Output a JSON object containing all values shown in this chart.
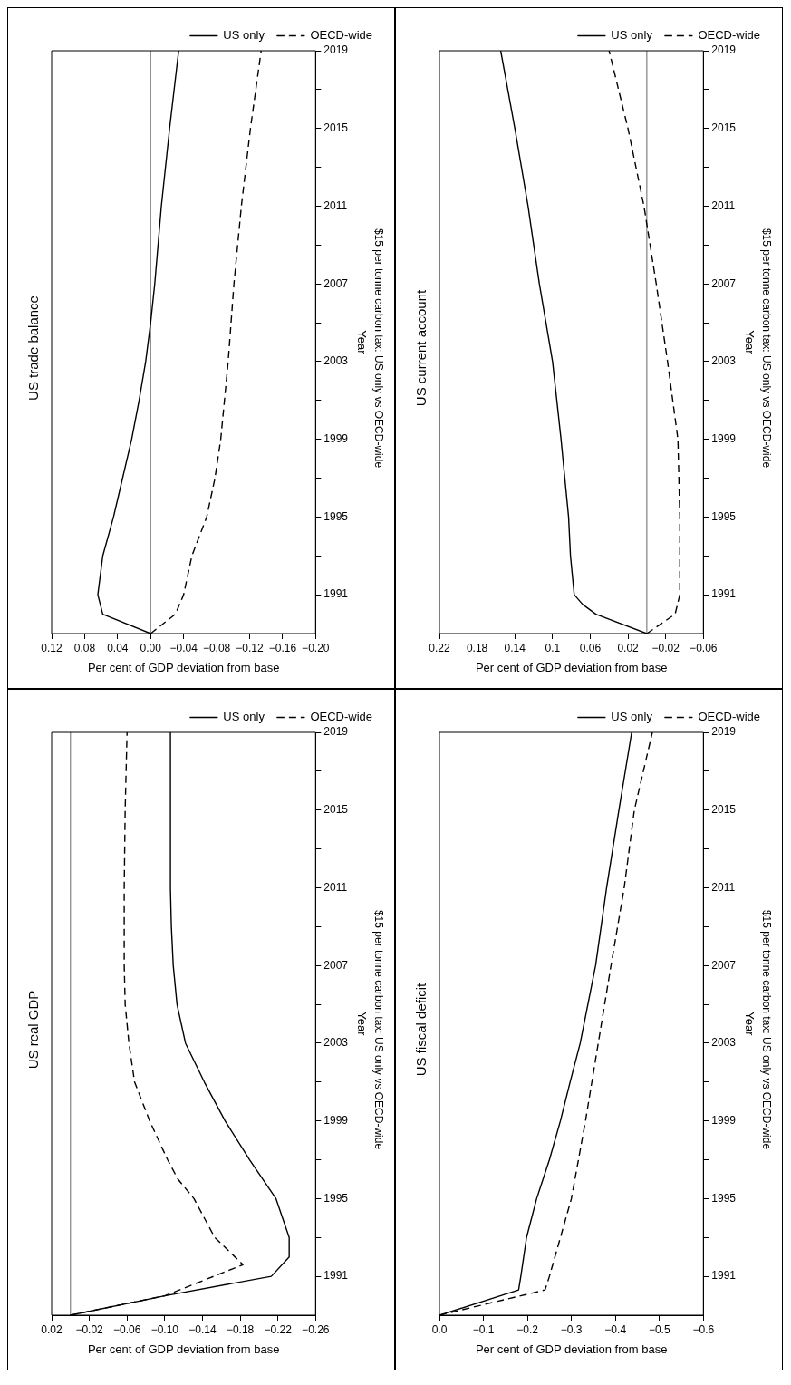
{
  "chart_data": [
    {
      "type": "line",
      "orientation": "horizontal",
      "title": "US trade balance",
      "ylabel": "Year",
      "xlabel": "Per cent of GDP deviation from base",
      "annotations": [
        "$15 per tonne carbon tax: US only vs OECD-wide"
      ],
      "legend": "top right",
      "marker": "none",
      "grid": false,
      "ylim": [
        1989,
        2019
      ],
      "yticks": [
        1991,
        {
          "value": 1993,
          "label": null
        },
        1995,
        {
          "value": 1997,
          "label": null
        },
        1999,
        {
          "value": 2001,
          "label": null
        },
        2003,
        {
          "value": 2005,
          "label": null
        },
        2007,
        {
          "value": 2009,
          "label": null
        },
        2011,
        {
          "value": 2013,
          "label": null
        },
        2015,
        {
          "value": 2017,
          "label": null
        },
        2019
      ],
      "xlim": [
        0.12,
        -0.2
      ],
      "xticks": [
        0.12,
        0.08,
        0.04,
        {
          "value": 0,
          "label": "0.00"
        },
        {
          "value": -0.04,
          "label": "−0.04"
        },
        {
          "value": -0.08,
          "label": "−0.08"
        },
        {
          "value": -0.12,
          "label": "−0.12"
        },
        {
          "value": -0.16,
          "label": "−0.16"
        },
        {
          "value": -0.2,
          "label": "−0.20"
        }
      ],
      "ref_lines": [
        {
          "axis": "x",
          "value": 0
        }
      ],
      "series": [
        {
          "name": "US only",
          "color": "#000000",
          "line_style": "solid",
          "x": [
            1989,
            1990,
            1991,
            1993,
            1995,
            1997,
            1999,
            2001,
            2003,
            2005,
            2007,
            2011,
            2015,
            2019
          ],
          "values": [
            0,
            0.058,
            0.064,
            0.058,
            0.045,
            0.034,
            0.023,
            0.014,
            0.006,
            0,
            -0.005,
            -0.013,
            -0.023,
            -0.034
          ]
        },
        {
          "name": "OECD-wide",
          "color": "#000000",
          "line_style": "dashed",
          "x": [
            1989,
            1990,
            1991,
            1993,
            1995,
            1997,
            1999,
            2003,
            2007,
            2011,
            2015,
            2019
          ],
          "values": [
            0,
            -0.03,
            -0.04,
            -0.05,
            -0.068,
            -0.078,
            -0.085,
            -0.094,
            -0.101,
            -0.11,
            -0.121,
            -0.134
          ]
        }
      ]
    },
    {
      "type": "line",
      "orientation": "horizontal",
      "title": "US current account",
      "ylabel": "Year",
      "xlabel": "Per cent of GDP deviation from base",
      "annotations": [
        "$15 per tonne carbon tax: US only vs OECD-wide"
      ],
      "legend": "top right",
      "marker": "none",
      "grid": false,
      "ylim": [
        1989,
        2019
      ],
      "yticks": [
        1991,
        {
          "value": 1993,
          "label": null
        },
        1995,
        {
          "value": 1997,
          "label": null
        },
        1999,
        {
          "value": 2001,
          "label": null
        },
        2003,
        {
          "value": 2005,
          "label": null
        },
        2007,
        {
          "value": 2009,
          "label": null
        },
        2011,
        {
          "value": 2013,
          "label": null
        },
        2015,
        {
          "value": 2017,
          "label": null
        },
        2019
      ],
      "xlim": [
        0.22,
        -0.06
      ],
      "xticks": [
        0.22,
        0.18,
        0.14,
        0.1,
        0.06,
        0.02,
        {
          "value": -0.02,
          "label": "−0.02"
        },
        {
          "value": -0.06,
          "label": "−0.06"
        }
      ],
      "ref_lines": [
        {
          "axis": "x",
          "value": 0
        }
      ],
      "series": [
        {
          "name": "US only",
          "color": "#000000",
          "line_style": "solid",
          "x": [
            1989,
            1990,
            1990.5,
            1991,
            1993,
            1995,
            1999,
            2003,
            2007,
            2011,
            2015,
            2019
          ],
          "values": [
            0,
            0.054,
            0.068,
            0.077,
            0.081,
            0.083,
            0.091,
            0.1,
            0.114,
            0.126,
            0.14,
            0.155
          ]
        },
        {
          "name": "OECD-wide",
          "color": "#000000",
          "line_style": "dashed",
          "x": [
            1989,
            1990,
            1991,
            1995,
            1999,
            2003,
            2007,
            2011,
            2015,
            2019
          ],
          "values": [
            0,
            -0.03,
            -0.035,
            -0.035,
            -0.033,
            -0.022,
            -0.01,
            0.003,
            0.02,
            0.04
          ]
        }
      ]
    },
    {
      "type": "line",
      "orientation": "horizontal",
      "title": "US real GDP",
      "ylabel": "Year",
      "xlabel": "Per cent of GDP deviation from base",
      "annotations": [
        "$15 per tonne carbon tax: US only vs OECD-wide"
      ],
      "legend": "top right",
      "marker": "none",
      "grid": false,
      "ylim": [
        1989,
        2019
      ],
      "yticks": [
        1991,
        {
          "value": 1993,
          "label": null
        },
        1995,
        {
          "value": 1997,
          "label": null
        },
        1999,
        {
          "value": 2001,
          "label": null
        },
        2003,
        {
          "value": 2005,
          "label": null
        },
        2007,
        {
          "value": 2009,
          "label": null
        },
        2011,
        {
          "value": 2013,
          "label": null
        },
        2015,
        {
          "value": 2017,
          "label": null
        },
        2019
      ],
      "xlim": [
        0.02,
        -0.26
      ],
      "xticks": [
        0.02,
        {
          "value": -0.02,
          "label": "−0.02"
        },
        {
          "value": -0.06,
          "label": "−0.06"
        },
        {
          "value": -0.1,
          "label": "−0.10"
        },
        {
          "value": -0.14,
          "label": "−0.14"
        },
        {
          "value": -0.18,
          "label": "−0.18"
        },
        {
          "value": -0.22,
          "label": "−0.22"
        },
        {
          "value": -0.26,
          "label": "−0.26"
        }
      ],
      "ref_lines": [
        {
          "axis": "x",
          "value": 0
        }
      ],
      "series": [
        {
          "name": "US only",
          "color": "#000000",
          "line_style": "solid",
          "x": [
            1989,
            1990,
            1991,
            1992,
            1993,
            1995,
            1997,
            1999,
            2001,
            2003,
            2005,
            2007,
            2009,
            2011,
            2015,
            2019
          ],
          "values": [
            0,
            -0.1,
            -0.213,
            -0.232,
            -0.232,
            -0.218,
            -0.19,
            -0.164,
            -0.142,
            -0.122,
            -0.113,
            -0.109,
            -0.107,
            -0.106,
            -0.106,
            -0.106
          ]
        },
        {
          "name": "OECD-wide",
          "color": "#000000",
          "line_style": "dashed",
          "x": [
            1989,
            1990,
            1991.6,
            1993,
            1995,
            1996,
            1997,
            1999,
            2001,
            2003,
            2005,
            2007,
            2011,
            2015,
            2019
          ],
          "values": [
            0,
            -0.1,
            -0.183,
            -0.153,
            -0.131,
            -0.114,
            -0.103,
            -0.084,
            -0.068,
            -0.062,
            -0.058,
            -0.057,
            -0.057,
            -0.058,
            -0.06
          ]
        }
      ]
    },
    {
      "type": "line",
      "orientation": "horizontal",
      "title": "US fiscal deficit",
      "ylabel": "Year",
      "xlabel": "Per cent of GDP deviation from base",
      "annotations": [
        "$15 per tonne carbon tax: US only vs OECD-wide"
      ],
      "legend": "top right",
      "marker": "none",
      "grid": false,
      "ylim": [
        1989,
        2019
      ],
      "yticks": [
        1991,
        {
          "value": 1993,
          "label": null
        },
        1995,
        {
          "value": 1997,
          "label": null
        },
        1999,
        {
          "value": 2001,
          "label": null
        },
        2003,
        {
          "value": 2005,
          "label": null
        },
        2007,
        {
          "value": 2009,
          "label": null
        },
        2011,
        {
          "value": 2013,
          "label": null
        },
        2015,
        {
          "value": 2017,
          "label": null
        },
        2019
      ],
      "xlim": [
        0,
        -0.6
      ],
      "xticks": [
        {
          "value": 0,
          "label": "0.0"
        },
        {
          "value": -0.1,
          "label": "−0.1"
        },
        {
          "value": -0.2,
          "label": "−0.2"
        },
        {
          "value": -0.3,
          "label": "−0.3"
        },
        {
          "value": -0.4,
          "label": "−0.4"
        },
        {
          "value": -0.5,
          "label": "−0.5"
        },
        {
          "value": -0.6,
          "label": "−0.6"
        }
      ],
      "series": [
        {
          "name": "US only",
          "color": "#000000",
          "line_style": "solid",
          "x": [
            1989,
            1990.3,
            1991,
            1993,
            1995,
            1997,
            1999,
            2001,
            2003,
            2007,
            2011,
            2015,
            2019
          ],
          "values": [
            0,
            -0.18,
            -0.185,
            -0.198,
            -0.221,
            -0.25,
            -0.275,
            -0.297,
            -0.32,
            -0.355,
            -0.38,
            -0.408,
            -0.437
          ]
        },
        {
          "name": "OECD-wide",
          "color": "#000000",
          "line_style": "dashed",
          "x": [
            1989,
            1990.3,
            1991,
            1995,
            1999,
            2003,
            2007,
            2011,
            2015,
            2019
          ],
          "values": [
            0,
            -0.24,
            -0.25,
            -0.3,
            -0.332,
            -0.361,
            -0.39,
            -0.42,
            -0.443,
            -0.484
          ]
        }
      ]
    }
  ]
}
